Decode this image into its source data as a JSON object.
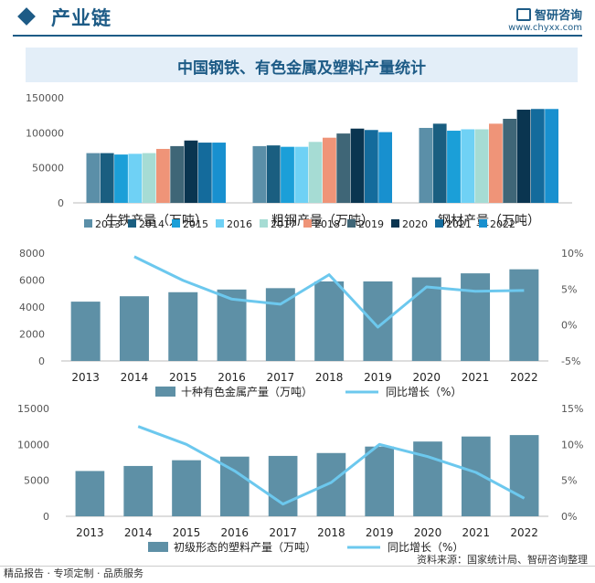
{
  "header": {
    "section_title": "产业链",
    "brand_name": "智研咨询",
    "brand_url": "www.chyxx.com"
  },
  "chart_title": "中国钢铁、有色金属及塑料产量统计",
  "source": "资料来源：国家统计局、智研咨询整理",
  "footer_slogan": "精品报告 · 专项定制 · 品质服务",
  "colors": {
    "years": [
      "#5b8fa8",
      "#1a5e80",
      "#1b9fd8",
      "#6fd1f5",
      "#a6dcd4",
      "#ef9478",
      "#3f6677",
      "#0a3550",
      "#146b9c",
      "#1890cf"
    ],
    "bar": "#5e90a6",
    "line": "#6cc8ee",
    "brand": "#1d5b86"
  },
  "chart_data": [
    {
      "type": "bar",
      "categories": [
        "生铁产量（万吨）",
        "粗钢产量（万吨）",
        "钢材产量（万吨）"
      ],
      "series": [
        {
          "name": "2013",
          "values": [
            71000,
            81000,
            107000
          ]
        },
        {
          "name": "2014",
          "values": [
            71000,
            82000,
            113000
          ]
        },
        {
          "name": "2015",
          "values": [
            69000,
            80000,
            103000
          ]
        },
        {
          "name": "2016",
          "values": [
            70000,
            80000,
            105000
          ]
        },
        {
          "name": "2017",
          "values": [
            71000,
            87000,
            105000
          ]
        },
        {
          "name": "2018",
          "values": [
            77000,
            93000,
            113000
          ]
        },
        {
          "name": "2019",
          "values": [
            81000,
            99000,
            120000
          ]
        },
        {
          "name": "2020",
          "values": [
            89000,
            106000,
            133000
          ]
        },
        {
          "name": "2021",
          "values": [
            86000,
            104000,
            134000
          ]
        },
        {
          "name": "2022",
          "values": [
            86000,
            101000,
            134000
          ]
        }
      ],
      "yticks": [
        "0",
        "50000",
        "100000",
        "150000"
      ],
      "ylim": [
        0,
        150000
      ]
    },
    {
      "type": "bar+line",
      "categories": [
        "2013",
        "2014",
        "2015",
        "2016",
        "2017",
        "2018",
        "2019",
        "2020",
        "2021",
        "2022"
      ],
      "bar_series": {
        "name": "十种有色金属产量（万吨）",
        "values": [
          4400,
          4800,
          5100,
          5300,
          5400,
          5900,
          5900,
          6200,
          6500,
          6800
        ]
      },
      "line_series": {
        "name": "同比增长（%）",
        "values": [
          null,
          9.5,
          6.2,
          3.6,
          2.9,
          7.0,
          -0.3,
          5.3,
          4.7,
          4.8
        ]
      },
      "y_left_ticks": [
        "0",
        "2000",
        "4000",
        "6000",
        "8000"
      ],
      "y_left_lim": [
        0,
        8000
      ],
      "y_right_ticks": [
        "-5%",
        "0%",
        "5%",
        "10%"
      ],
      "y_right_lim": [
        -5,
        10
      ]
    },
    {
      "type": "bar+line",
      "categories": [
        "2013",
        "2014",
        "2015",
        "2016",
        "2017",
        "2018",
        "2019",
        "2020",
        "2021",
        "2022"
      ],
      "bar_series": {
        "name": "初级形态的塑料产量（万吨）",
        "values": [
          6300,
          7000,
          7800,
          8300,
          8400,
          8800,
          9700,
          10400,
          11100,
          11300
        ]
      },
      "line_series": {
        "name": "同比增长（%）",
        "values": [
          null,
          12.5,
          10.0,
          6.3,
          1.7,
          4.7,
          10.0,
          8.3,
          6.1,
          2.5
        ]
      },
      "y_left_ticks": [
        "0",
        "5000",
        "10000",
        "15000"
      ],
      "y_left_lim": [
        0,
        15000
      ],
      "y_right_ticks": [
        "0%",
        "5%",
        "10%",
        "15%"
      ],
      "y_right_lim": [
        0,
        15
      ]
    }
  ]
}
